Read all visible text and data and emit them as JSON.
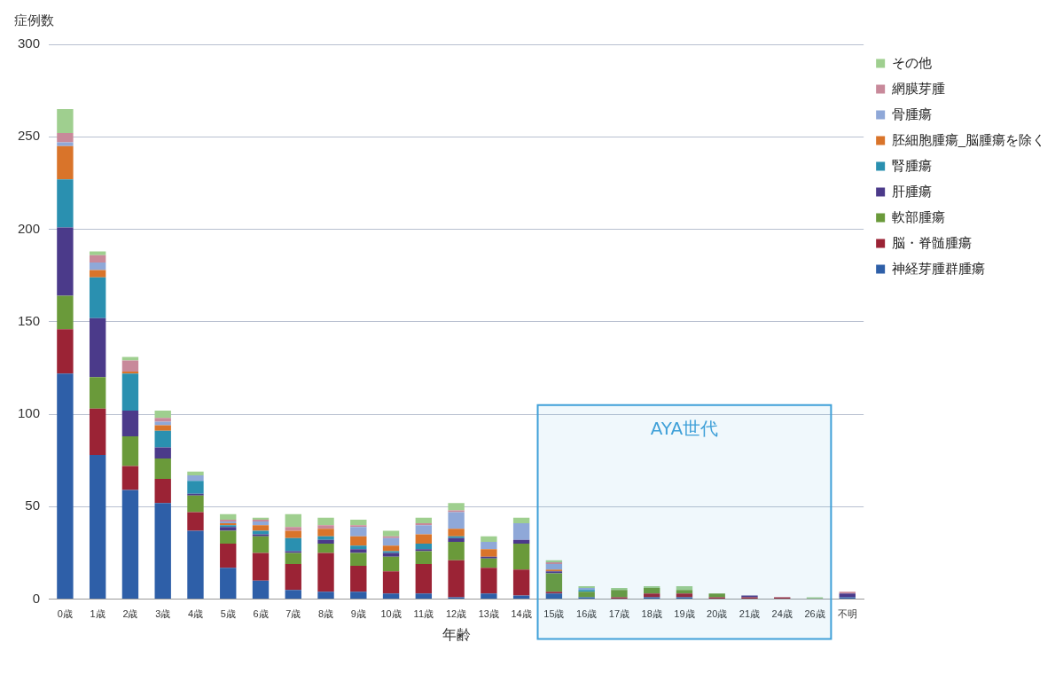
{
  "chart_data": {
    "type": "bar",
    "stacked": true,
    "xlabel": "年齢",
    "ylabel": "症例数",
    "categories": [
      "0歳",
      "1歳",
      "2歳",
      "3歳",
      "4歳",
      "5歳",
      "6歳",
      "7歳",
      "8歳",
      "9歳",
      "10歳",
      "11歳",
      "12歳",
      "13歳",
      "14歳",
      "15歳",
      "16歳",
      "17歳",
      "18歳",
      "19歳",
      "20歳",
      "21歳",
      "24歳",
      "26歳",
      "不明"
    ],
    "series": [
      {
        "name": "神経芽腫群腫瘍",
        "color": "#2e5fa8",
        "values": [
          122,
          78,
          59,
          52,
          37,
          17,
          10,
          5,
          4,
          4,
          3,
          3,
          1,
          3,
          2,
          3,
          1,
          0,
          1,
          1,
          0,
          0,
          0,
          0,
          1
        ]
      },
      {
        "name": "脳・脊髄腫瘍",
        "color": "#9b2335",
        "values": [
          24,
          25,
          13,
          13,
          10,
          13,
          15,
          14,
          21,
          14,
          12,
          16,
          20,
          14,
          14,
          1,
          0,
          1,
          2,
          2,
          1,
          1,
          1,
          0,
          0
        ]
      },
      {
        "name": "軟部腫瘍",
        "color": "#6a9a3a",
        "values": [
          18,
          17,
          16,
          11,
          9,
          7,
          9,
          6,
          5,
          7,
          8,
          7,
          10,
          5,
          14,
          10,
          3,
          4,
          3,
          2,
          2,
          0,
          0,
          0,
          0
        ]
      },
      {
        "name": "肝腫瘍",
        "color": "#4b3a8a",
        "values": [
          37,
          32,
          14,
          6,
          1,
          2,
          1,
          1,
          2,
          2,
          2,
          1,
          2,
          1,
          2,
          1,
          0,
          0,
          0,
          0,
          0,
          1,
          0,
          0,
          2
        ]
      },
      {
        "name": "腎腫瘍",
        "color": "#2a90b0",
        "values": [
          26,
          22,
          20,
          9,
          7,
          1,
          2,
          7,
          2,
          2,
          1,
          3,
          1,
          0,
          0,
          0,
          1,
          0,
          0,
          0,
          0,
          0,
          0,
          0,
          0
        ]
      },
      {
        "name": "胚細胞腫瘍_脳腫瘍を除く",
        "color": "#d9742a",
        "values": [
          18,
          4,
          1,
          3,
          0,
          1,
          3,
          4,
          4,
          5,
          3,
          5,
          4,
          4,
          0,
          1,
          0,
          0,
          0,
          0,
          0,
          0,
          0,
          0,
          0
        ]
      },
      {
        "name": "骨腫瘍",
        "color": "#8fa8d8",
        "values": [
          2,
          4,
          0,
          2,
          3,
          1,
          2,
          0,
          0,
          5,
          4,
          5,
          9,
          4,
          9,
          3,
          1,
          0,
          0,
          0,
          0,
          0,
          0,
          0,
          0
        ]
      },
      {
        "name": "網膜芽腫",
        "color": "#c8899a",
        "values": [
          5,
          4,
          6,
          2,
          0,
          1,
          1,
          2,
          2,
          1,
          1,
          1,
          1,
          0,
          0,
          1,
          0,
          0,
          0,
          0,
          0,
          0,
          0,
          0,
          1
        ]
      },
      {
        "name": "その他",
        "color": "#9fcf8f",
        "values": [
          13,
          2,
          2,
          4,
          2,
          3,
          1,
          7,
          4,
          3,
          3,
          3,
          4,
          3,
          3,
          1,
          1,
          1,
          1,
          2,
          0,
          0,
          0,
          1,
          0
        ]
      }
    ],
    "ylim": [
      0,
      300
    ],
    "yticks": [
      0,
      50,
      100,
      150,
      200,
      250,
      300
    ],
    "grid": "y",
    "legend": "right",
    "bands": [
      {
        "axis": "x",
        "from": "15歳",
        "to": "26歳",
        "label": "AYA世代",
        "color": "#3fa0d8"
      }
    ]
  }
}
